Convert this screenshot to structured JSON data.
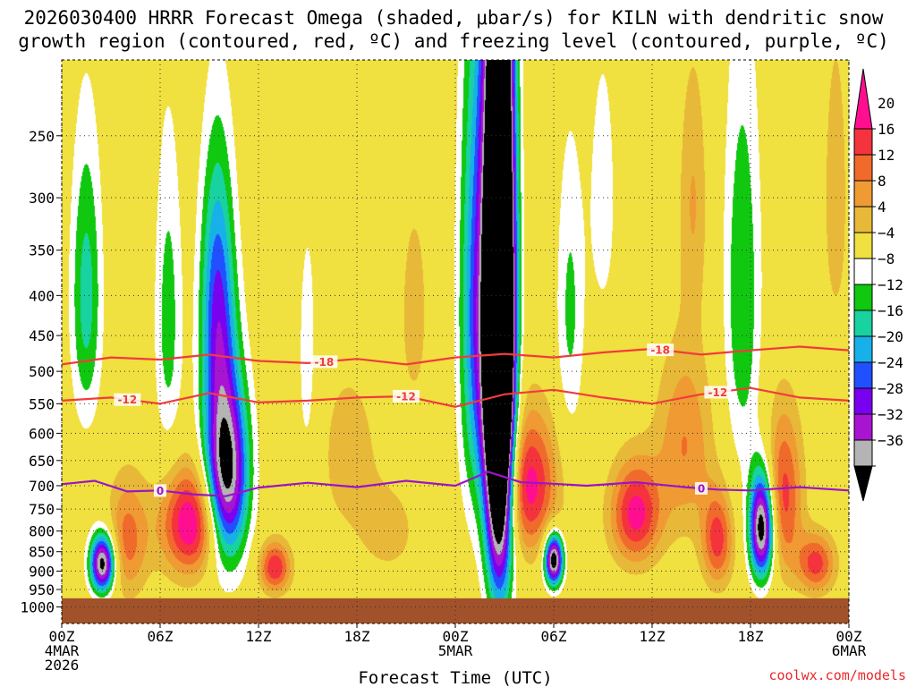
{
  "chart_data": {
    "type": "heatmap",
    "title_line1": "2026030400 HRRR Forecast Omega (shaded, μbar/s) for KILN with dendritic snow",
    "title_line2": "growth region (contoured, red, ºC) and freezing level (contoured, purple, ºC)",
    "xlabel": "Forecast Time (UTC)",
    "ylabel": "",
    "credit": "coolwx.com/models",
    "x_range_hours": [
      0,
      48
    ],
    "x_ticks": [
      {
        "hour": 0,
        "lines": [
          "00Z",
          "4MAR",
          "2026"
        ]
      },
      {
        "hour": 6,
        "lines": [
          "06Z"
        ]
      },
      {
        "hour": 12,
        "lines": [
          "12Z"
        ]
      },
      {
        "hour": 18,
        "lines": [
          "18Z"
        ]
      },
      {
        "hour": 24,
        "lines": [
          "00Z",
          "5MAR"
        ]
      },
      {
        "hour": 30,
        "lines": [
          "06Z"
        ]
      },
      {
        "hour": 36,
        "lines": [
          "12Z"
        ]
      },
      {
        "hour": 42,
        "lines": [
          "18Z"
        ]
      },
      {
        "hour": 48,
        "lines": [
          "00Z",
          "6MAR"
        ]
      }
    ],
    "y_axis": "pressure (hPa), log scale, inverted",
    "y_range_hpa": [
      200,
      1050
    ],
    "y_ticks": [
      250,
      300,
      350,
      400,
      450,
      500,
      550,
      600,
      650,
      700,
      750,
      800,
      850,
      900,
      950,
      1000
    ],
    "ground_level_hpa": 975,
    "colorbar": {
      "labels": [
        "20",
        "16",
        "12",
        "8",
        "4",
        "−4",
        "−8",
        "−12",
        "−16",
        "−20",
        "−24",
        "−28",
        "−32",
        "−36"
      ],
      "colors": [
        "#ff0f8f",
        "#f5333c",
        "#f06a2c",
        "#ef9a32",
        "#e8b838",
        "#f0e040",
        "#ffffff",
        "#10c810",
        "#18d2a0",
        "#18b0e8",
        "#2050ff",
        "#7a00f0",
        "#a814d0",
        "#b4b4b4",
        "#000000"
      ]
    },
    "omega_features": [
      {
        "hour": 2.5,
        "center_hpa": 880,
        "half_width_h": 0.8,
        "half_depth_hpa": 80,
        "peak": -40
      },
      {
        "hour": 10,
        "center_hpa": 680,
        "half_width_h": 1.4,
        "half_depth_hpa": 200,
        "peak": -42
      },
      {
        "hour": 9.5,
        "center_hpa": 400,
        "half_width_h": 1.1,
        "half_depth_hpa": 170,
        "peak": -22
      },
      {
        "hour": 8,
        "center_hpa": 780,
        "half_width_h": 2.0,
        "half_depth_hpa": 130,
        "peak": 26
      },
      {
        "hour": 4,
        "center_hpa": 820,
        "half_width_h": 1.3,
        "half_depth_hpa": 150,
        "peak": 14
      },
      {
        "hour": 13,
        "center_hpa": 890,
        "half_width_h": 1.0,
        "half_depth_hpa": 70,
        "peak": 20
      },
      {
        "hour": 1.5,
        "center_hpa": 400,
        "half_width_h": 1.0,
        "half_depth_hpa": 180,
        "peak": -14
      },
      {
        "hour": 6.5,
        "center_hpa": 430,
        "half_width_h": 0.9,
        "half_depth_hpa": 220,
        "peak": -10
      },
      {
        "hour": 15,
        "center_hpa": 500,
        "half_width_h": 0.8,
        "half_depth_hpa": 260,
        "peak": -6
      },
      {
        "hour": 17.5,
        "center_hpa": 640,
        "half_width_h": 2.2,
        "half_depth_hpa": 190,
        "peak": 6
      },
      {
        "hour": 20,
        "center_hpa": 800,
        "half_width_h": 1.8,
        "half_depth_hpa": 110,
        "peak": 6
      },
      {
        "hour": 26.7,
        "center_hpa": 450,
        "half_width_h": 0.9,
        "half_depth_hpa": 420,
        "peak": -95
      },
      {
        "hour": 25.3,
        "center_hpa": 420,
        "half_width_h": 1.1,
        "half_depth_hpa": 320,
        "peak": -22
      },
      {
        "hour": 28.5,
        "center_hpa": 700,
        "half_width_h": 1.8,
        "half_depth_hpa": 150,
        "peak": 22
      },
      {
        "hour": 30,
        "center_hpa": 870,
        "half_width_h": 0.6,
        "half_depth_hpa": 70,
        "peak": -42
      },
      {
        "hour": 31,
        "center_hpa": 420,
        "half_width_h": 0.9,
        "half_depth_hpa": 200,
        "peak": -9
      },
      {
        "hour": 35,
        "center_hpa": 760,
        "half_width_h": 1.6,
        "half_depth_hpa": 120,
        "peak": 22
      },
      {
        "hour": 38,
        "center_hpa": 620,
        "half_width_h": 1.8,
        "half_depth_hpa": 180,
        "peak": 12
      },
      {
        "hour": 38.5,
        "center_hpa": 300,
        "half_width_h": 0.9,
        "half_depth_hpa": 120,
        "peak": 8
      },
      {
        "hour": 41.5,
        "center_hpa": 400,
        "half_width_h": 1.2,
        "half_depth_hpa": 260,
        "peak": -12
      },
      {
        "hour": 40,
        "center_hpa": 820,
        "half_width_h": 1.0,
        "half_depth_hpa": 120,
        "peak": 18
      },
      {
        "hour": 42.7,
        "center_hpa": 790,
        "half_width_h": 0.8,
        "half_depth_hpa": 130,
        "peak": -42
      },
      {
        "hour": 44,
        "center_hpa": 720,
        "half_width_h": 1.2,
        "half_depth_hpa": 180,
        "peak": 18
      },
      {
        "hour": 46,
        "center_hpa": 880,
        "half_width_h": 1.2,
        "half_depth_hpa": 80,
        "peak": 18
      },
      {
        "hour": 47.2,
        "center_hpa": 300,
        "half_width_h": 0.8,
        "half_depth_hpa": 140,
        "peak": 7
      },
      {
        "hour": 21.5,
        "center_hpa": 420,
        "half_width_h": 1.0,
        "half_depth_hpa": 150,
        "peak": 6
      },
      {
        "hour": 33,
        "center_hpa": 300,
        "half_width_h": 1.0,
        "half_depth_hpa": 150,
        "peak": -6
      }
    ],
    "contours": [
      {
        "name": "dgz-minus18",
        "label": "-18",
        "color": "#f03c3c",
        "label_hours": [
          16,
          36.5
        ],
        "x": [
          0,
          3,
          6,
          9,
          12,
          15,
          18,
          21,
          24,
          27,
          30,
          33,
          36,
          39,
          42,
          45,
          48
        ],
        "y": [
          490,
          480,
          483,
          476,
          485,
          488,
          482,
          490,
          480,
          475,
          480,
          473,
          468,
          476,
          470,
          465,
          470
        ]
      },
      {
        "name": "dgz-minus12",
        "label": "-12",
        "color": "#f03c3c",
        "label_hours": [
          4,
          21,
          40
        ],
        "x": [
          0,
          3,
          6,
          9,
          12,
          15,
          18,
          21,
          24,
          27,
          30,
          33,
          36,
          39,
          42,
          45,
          48
        ],
        "y": [
          545,
          540,
          550,
          533,
          548,
          545,
          540,
          538,
          555,
          535,
          528,
          540,
          550,
          535,
          525,
          540,
          545
        ]
      },
      {
        "name": "freezing-level",
        "label": "0",
        "color": "#9a14c8",
        "label_hours": [
          6,
          39
        ],
        "x": [
          0,
          2,
          4,
          6,
          8,
          10,
          12,
          15,
          18,
          21,
          24,
          26,
          28,
          30,
          32,
          35,
          38,
          40,
          42,
          45,
          48
        ],
        "y": [
          697,
          690,
          712,
          710,
          718,
          722,
          704,
          694,
          703,
          690,
          700,
          672,
          693,
          696,
          700,
          693,
          703,
          708,
          710,
          703,
          710
        ]
      }
    ]
  }
}
